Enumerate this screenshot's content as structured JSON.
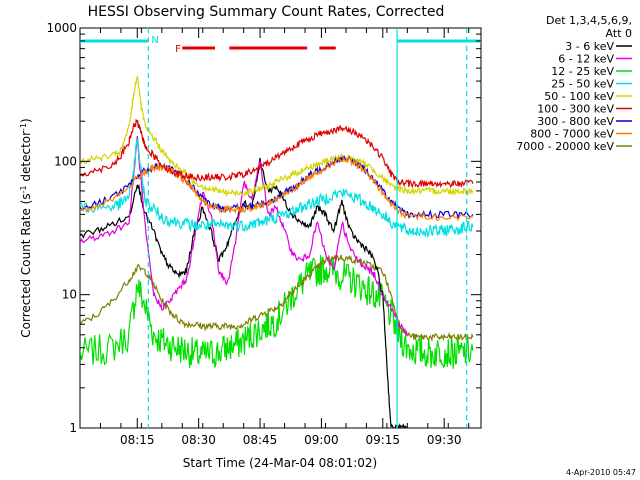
{
  "chart_data": {
    "type": "line",
    "title": "HESSI Observing Summary Count Rates, Corrected",
    "xlabel": "Start Time (24-Mar-04 08:01:02)",
    "ylabel_main": "Corrected Count Rate (s",
    "ylabel_sup1": "-1",
    "ylabel_mid": " detector",
    "ylabel_sup2": "-1",
    "ylabel_end": ")",
    "y_scale": "log",
    "ylim": [
      1,
      1000
    ],
    "y_ticks": [
      {
        "value": 1,
        "label": "1"
      },
      {
        "value": 10,
        "label": "10"
      },
      {
        "value": 100,
        "label": "100"
      },
      {
        "value": 1000,
        "label": "1000"
      }
    ],
    "xlim_min": [
      0,
      98
    ],
    "x_ticks": [
      {
        "value": 14,
        "label": "08:15"
      },
      {
        "value": 29,
        "label": "08:30"
      },
      {
        "value": 44,
        "label": "08:45"
      },
      {
        "value": 59,
        "label": "09:00"
      },
      {
        "value": 74,
        "label": "09:15"
      },
      {
        "value": 89,
        "label": "09:30"
      }
    ],
    "legend_header": [
      "Det 1,3,4,5,6,9,",
      "Att 0"
    ],
    "legend_position": "outside-right",
    "series": [
      {
        "name": "3 - 6 keV",
        "color": "#000000",
        "x": [
          0,
          4,
          8,
          12,
          14,
          16,
          18,
          20,
          22,
          24,
          26,
          28,
          30,
          32,
          34,
          36,
          38,
          40,
          42,
          44,
          46,
          48,
          50,
          52,
          54,
          56,
          58,
          60,
          62,
          64,
          66,
          68,
          70,
          72,
          74,
          75,
          76,
          78,
          80
        ],
        "y": [
          28,
          30,
          34,
          38,
          70,
          40,
          30,
          20,
          16,
          14,
          15,
          30,
          45,
          30,
          18,
          24,
          35,
          50,
          45,
          100,
          60,
          65,
          50,
          40,
          35,
          32,
          45,
          40,
          30,
          50,
          30,
          25,
          22,
          18,
          10,
          3,
          1,
          1,
          1
        ]
      },
      {
        "name": "6 - 12 keV",
        "color": "#e000e0",
        "x": [
          0,
          4,
          8,
          12,
          14,
          16,
          18,
          20,
          22,
          24,
          26,
          28,
          30,
          32,
          34,
          36,
          38,
          40,
          42,
          44,
          46,
          48,
          50,
          52,
          54,
          56,
          58,
          60,
          62,
          64,
          66,
          68,
          70,
          72,
          74,
          76,
          78,
          80
        ],
        "y": [
          25,
          27,
          30,
          35,
          150,
          30,
          10,
          8,
          9,
          11,
          13,
          26,
          60,
          40,
          15,
          12,
          25,
          70,
          50,
          100,
          40,
          45,
          30,
          20,
          18,
          20,
          35,
          20,
          15,
          35,
          22,
          18,
          16,
          14,
          10,
          8,
          6,
          5
        ]
      },
      {
        "name": "12 - 25 keV",
        "color": "#00e000",
        "x": [
          0,
          4,
          8,
          12,
          14,
          16,
          18,
          20,
          22,
          24,
          26,
          28,
          30,
          32,
          34,
          36,
          38,
          40,
          42,
          44,
          46,
          48,
          50,
          52,
          54,
          56,
          58,
          60,
          62,
          64,
          66,
          68,
          70,
          72,
          74,
          76,
          78,
          80,
          82,
          84,
          86,
          88,
          90,
          92,
          94,
          96
        ],
        "y": [
          3.6,
          3.8,
          4,
          5,
          12,
          8,
          5,
          4.5,
          4.2,
          4,
          3.8,
          3.6,
          3.5,
          3.6,
          3.7,
          4,
          4.2,
          4.5,
          5,
          5.5,
          6,
          6.5,
          8,
          10,
          12,
          14,
          15,
          16,
          15,
          14,
          13,
          12,
          11,
          10,
          9,
          7,
          5,
          4,
          3.8,
          3.7,
          3.6,
          3.8,
          3.7,
          3.6,
          3.7,
          3.8
        ]
      },
      {
        "name": "25 - 50 keV",
        "color": "#00e0e0",
        "x": [
          0,
          4,
          8,
          10,
          12,
          13,
          14,
          15,
          16,
          18,
          20,
          22,
          24,
          26,
          28,
          30,
          32,
          34,
          36,
          38,
          40,
          42,
          44,
          46,
          48,
          50,
          52,
          54,
          56,
          58,
          60,
          62,
          64,
          66,
          68,
          70,
          72,
          74,
          76,
          78,
          80,
          82,
          84,
          86,
          88,
          90,
          92,
          94,
          96
        ],
        "y": [
          45,
          45,
          46,
          48,
          55,
          80,
          150,
          80,
          50,
          44,
          38,
          36,
          35,
          34,
          33,
          33,
          33,
          33,
          33,
          33,
          33,
          34,
          35,
          36,
          38,
          40,
          42,
          45,
          48,
          50,
          53,
          56,
          58,
          56,
          52,
          48,
          44,
          40,
          35,
          32,
          30,
          30,
          30,
          30,
          30,
          31,
          31,
          32,
          32
        ]
      },
      {
        "name": "50 - 100 keV",
        "color": "#d4d400",
        "x": [
          0,
          4,
          8,
          10,
          12,
          13,
          14,
          15,
          16,
          18,
          20,
          22,
          24,
          26,
          28,
          30,
          32,
          34,
          36,
          38,
          40,
          42,
          44,
          46,
          48,
          50,
          52,
          54,
          56,
          58,
          60,
          62,
          64,
          66,
          68,
          70,
          72,
          74,
          76,
          78,
          80,
          82,
          84,
          86,
          88,
          90,
          92,
          94,
          96
        ],
        "y": [
          100,
          105,
          110,
          120,
          180,
          300,
          450,
          250,
          180,
          150,
          120,
          100,
          90,
          80,
          70,
          65,
          62,
          60,
          58,
          58,
          58,
          60,
          62,
          65,
          70,
          75,
          80,
          85,
          90,
          95,
          100,
          105,
          108,
          106,
          100,
          95,
          85,
          75,
          65,
          62,
          60,
          60,
          60,
          60,
          60,
          60,
          60,
          60,
          60
        ]
      },
      {
        "name": "100 - 300 keV",
        "color": "#e00000",
        "x": [
          0,
          4,
          8,
          10,
          12,
          13,
          14,
          15,
          16,
          18,
          20,
          22,
          24,
          26,
          28,
          30,
          32,
          34,
          36,
          38,
          40,
          42,
          44,
          46,
          48,
          50,
          52,
          54,
          56,
          58,
          60,
          62,
          64,
          66,
          68,
          70,
          72,
          74,
          76,
          78,
          80,
          82,
          84,
          86,
          88,
          90,
          92,
          94,
          96
        ],
        "y": [
          80,
          85,
          95,
          110,
          140,
          180,
          200,
          160,
          130,
          110,
          95,
          85,
          80,
          78,
          76,
          76,
          76,
          76,
          76,
          78,
          80,
          84,
          90,
          98,
          108,
          118,
          128,
          138,
          148,
          158,
          165,
          172,
          175,
          170,
          160,
          145,
          125,
          105,
          80,
          70,
          68,
          68,
          68,
          68,
          68,
          68,
          68,
          68,
          68
        ]
      },
      {
        "name": "300 - 800 keV",
        "color": "#0000e0",
        "x": [
          0,
          4,
          8,
          12,
          14,
          16,
          18,
          20,
          22,
          24,
          26,
          28,
          30,
          32,
          34,
          36,
          38,
          40,
          42,
          44,
          46,
          48,
          50,
          52,
          54,
          56,
          58,
          60,
          62,
          64,
          66,
          68,
          70,
          72,
          74,
          76,
          78,
          80,
          84,
          88,
          92,
          96
        ],
        "y": [
          44,
          48,
          55,
          65,
          78,
          85,
          90,
          92,
          88,
          80,
          72,
          62,
          52,
          47,
          45,
          45,
          45,
          45,
          46,
          48,
          50,
          53,
          58,
          63,
          70,
          78,
          85,
          92,
          100,
          105,
          102,
          95,
          85,
          72,
          60,
          50,
          43,
          40,
          40,
          40,
          40,
          40
        ]
      },
      {
        "name": "800 - 7000 keV",
        "color": "#ff7f00",
        "x": [
          0,
          4,
          8,
          12,
          14,
          16,
          18,
          20,
          22,
          24,
          26,
          28,
          30,
          32,
          34,
          36,
          38,
          40,
          42,
          44,
          46,
          48,
          50,
          52,
          54,
          56,
          58,
          60,
          62,
          64,
          66,
          68,
          70,
          72,
          74,
          76,
          78,
          80,
          84,
          88,
          92,
          96
        ],
        "y": [
          42,
          46,
          53,
          63,
          76,
          84,
          88,
          90,
          86,
          78,
          70,
          60,
          50,
          46,
          44,
          44,
          44,
          44,
          45,
          47,
          49,
          52,
          56,
          62,
          68,
          76,
          83,
          90,
          98,
          103,
          100,
          93,
          83,
          70,
          58,
          48,
          42,
          39,
          39,
          38,
          38,
          38
        ]
      },
      {
        "name": "7000 - 20000 keV",
        "color": "#7f7f00",
        "x": [
          0,
          4,
          8,
          12,
          14,
          16,
          18,
          20,
          22,
          24,
          26,
          28,
          30,
          32,
          34,
          36,
          38,
          40,
          42,
          44,
          46,
          48,
          50,
          52,
          54,
          56,
          58,
          60,
          62,
          64,
          66,
          68,
          70,
          72,
          74,
          76,
          78,
          80,
          82,
          84,
          86,
          88,
          90,
          92,
          94,
          96
        ],
        "y": [
          6,
          7,
          9,
          13,
          16,
          15,
          12,
          9,
          7.5,
          6.5,
          6,
          6,
          5.8,
          5.8,
          5.8,
          5.8,
          5.8,
          6,
          6.5,
          7,
          7.5,
          8,
          9,
          10.5,
          12,
          14,
          16,
          18,
          19,
          19,
          18.5,
          18,
          17,
          16,
          15,
          10,
          6,
          5,
          4.8,
          4.8,
          4.8,
          4.8,
          4.8,
          4.8,
          4.8,
          4.8
        ]
      }
    ],
    "segments": [
      {
        "label": "",
        "color": "#00e0e0",
        "from": 0,
        "to": 16.7
      },
      {
        "label": "",
        "color": "#00e0e0",
        "from": 77.5,
        "to": 98
      },
      {
        "label": "",
        "color": "#e00000",
        "from": 25,
        "to": 33
      },
      {
        "label": "",
        "color": "#e00000",
        "from": 36.5,
        "to": 55.5
      },
      {
        "label": "",
        "color": "#e00000",
        "from": 58.5,
        "to": 62.5
      }
    ],
    "markers": [
      {
        "label": "N",
        "color": "#00e0e0",
        "x": 16.7
      },
      {
        "label": "F",
        "color": "#e00000",
        "x": 22.5
      }
    ],
    "vlines": [
      {
        "x": 16.7,
        "color": "#00e0e0",
        "style": "dashed"
      },
      {
        "x": 77.5,
        "color": "#00e0e0",
        "style": "solid"
      },
      {
        "x": 94.5,
        "color": "#00e0e0",
        "style": "dashed"
      }
    ],
    "grid": false
  },
  "footer_date": "4-Apr-2010 05:47"
}
